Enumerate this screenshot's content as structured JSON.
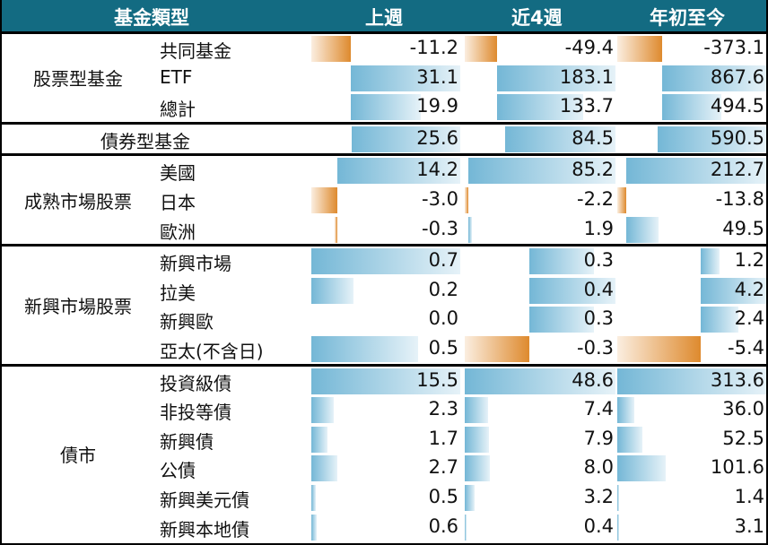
{
  "header": {
    "category": "基金類型",
    "col1": "上週",
    "col2": "近4週",
    "col3": "年初至今"
  },
  "colors": {
    "header": "#136b82",
    "positive": "#74b7d6",
    "negative": "#de8a2e"
  },
  "sections": [
    {
      "label": "股票型基金",
      "rows": [
        {
          "name": "共同基金",
          "values": [
            -11.2,
            -49.4,
            -373.1
          ],
          "text": [
            "-11.2",
            "-49.4",
            "-373.1"
          ]
        },
        {
          "name": "ETF",
          "values": [
            31.1,
            183.1,
            867.6
          ],
          "text": [
            "31.1",
            "183.1",
            "867.6"
          ]
        },
        {
          "name": "總計",
          "values": [
            19.9,
            133.7,
            494.5
          ],
          "text": [
            "19.9",
            "133.7",
            "494.5"
          ]
        }
      ]
    },
    {
      "label": "債券型基金",
      "single": true,
      "rows": [
        {
          "name": "",
          "values": [
            25.6,
            84.5,
            590.5
          ],
          "text": [
            "25.6",
            "84.5",
            "590.5"
          ]
        }
      ]
    },
    {
      "label": "成熟市場股票",
      "rows": [
        {
          "name": "美國",
          "values": [
            14.2,
            85.2,
            212.7
          ],
          "text": [
            "14.2",
            "85.2",
            "212.7"
          ]
        },
        {
          "name": "日本",
          "values": [
            -3.0,
            -2.2,
            -13.8
          ],
          "text": [
            "-3.0",
            "-2.2",
            "-13.8"
          ]
        },
        {
          "name": "歐洲",
          "values": [
            -0.3,
            1.9,
            49.5
          ],
          "text": [
            "-0.3",
            "1.9",
            "49.5"
          ]
        }
      ]
    },
    {
      "label": "新興市場股票",
      "rows": [
        {
          "name": "新興市場",
          "values": [
            0.7,
            0.3,
            1.2
          ],
          "text": [
            "0.7",
            "0.3",
            "1.2"
          ]
        },
        {
          "name": "拉美",
          "values": [
            0.2,
            0.4,
            4.2
          ],
          "text": [
            "0.2",
            "0.4",
            "4.2"
          ]
        },
        {
          "name": "新興歐",
          "values": [
            0.0,
            0.3,
            2.4
          ],
          "text": [
            "0.0",
            "0.3",
            "2.4"
          ]
        },
        {
          "name": "亞太(不含日)",
          "values": [
            0.5,
            -0.3,
            -5.4
          ],
          "text": [
            "0.5",
            "-0.3",
            "-5.4"
          ]
        }
      ]
    },
    {
      "label": "債市",
      "rows": [
        {
          "name": "投資級債",
          "values": [
            15.5,
            48.6,
            313.6
          ],
          "text": [
            "15.5",
            "48.6",
            "313.6"
          ]
        },
        {
          "name": "非投等債",
          "values": [
            2.3,
            7.4,
            36.0
          ],
          "text": [
            "2.3",
            "7.4",
            "36.0"
          ]
        },
        {
          "name": "新興債",
          "values": [
            1.7,
            7.9,
            52.5
          ],
          "text": [
            "1.7",
            "7.9",
            "52.5"
          ]
        },
        {
          "name": "公債",
          "values": [
            2.7,
            8.0,
            101.6
          ],
          "text": [
            "2.7",
            "8.0",
            "101.6"
          ]
        },
        {
          "name": "新興美元債",
          "values": [
            0.5,
            3.2,
            1.4
          ],
          "text": [
            "0.5",
            "3.2",
            "1.4"
          ]
        },
        {
          "name": "新興本地債",
          "values": [
            0.6,
            0.4,
            3.1
          ],
          "text": [
            "0.6",
            "0.4",
            "3.1"
          ]
        }
      ]
    }
  ]
}
